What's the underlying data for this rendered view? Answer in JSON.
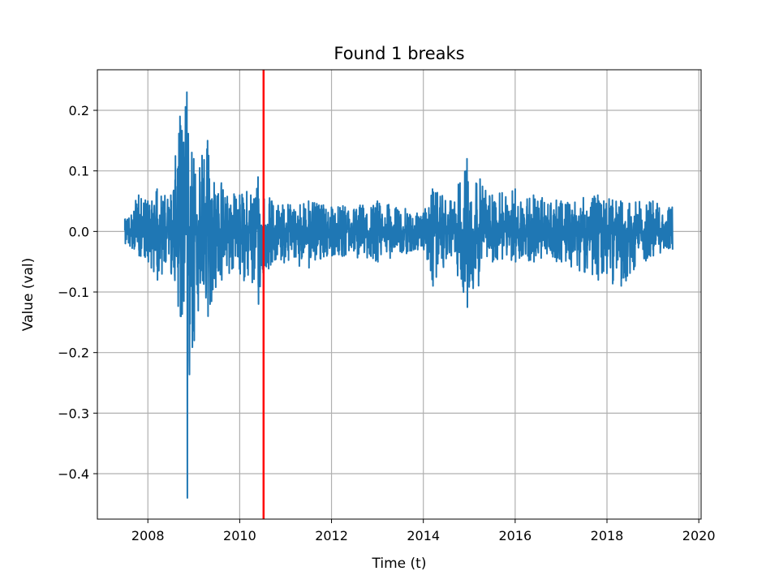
{
  "chart_data": {
    "type": "line",
    "title": "Found 1 breaks",
    "xlabel": "Time (t)",
    "ylabel": "Value (val)",
    "xlim": [
      2006.9,
      2020.05
    ],
    "ylim": [
      -0.475,
      0.267
    ],
    "xticks": [
      {
        "value": 2008,
        "label": "2008"
      },
      {
        "value": 2010,
        "label": "2010"
      },
      {
        "value": 2012,
        "label": "2012"
      },
      {
        "value": 2014,
        "label": "2014"
      },
      {
        "value": 2016,
        "label": "2016"
      },
      {
        "value": 2018,
        "label": "2018"
      },
      {
        "value": 2020,
        "label": "2020"
      }
    ],
    "yticks": [
      {
        "value": 0.2,
        "label": "0.2"
      },
      {
        "value": 0.1,
        "label": "0.1"
      },
      {
        "value": 0.0,
        "label": "0.0"
      },
      {
        "value": -0.1,
        "label": "−0.1"
      },
      {
        "value": -0.2,
        "label": "−0.2"
      },
      {
        "value": -0.3,
        "label": "−0.3"
      },
      {
        "value": -0.4,
        "label": "−0.4"
      }
    ],
    "grid": true,
    "series": [
      {
        "color": "#1f77b4",
        "x_start": 2007.5,
        "x_end": 2019.42,
        "envelope": [
          {
            "x": 2007.5,
            "hi": 0.02,
            "lo": -0.02
          },
          {
            "x": 2007.8,
            "hi": 0.06,
            "lo": -0.04
          },
          {
            "x": 2008.0,
            "hi": 0.05,
            "lo": -0.05
          },
          {
            "x": 2008.2,
            "hi": 0.07,
            "lo": -0.08
          },
          {
            "x": 2008.5,
            "hi": 0.06,
            "lo": -0.07
          },
          {
            "x": 2008.7,
            "hi": 0.19,
            "lo": -0.14
          },
          {
            "x": 2008.85,
            "hi": 0.23,
            "lo": -0.44
          },
          {
            "x": 2009.0,
            "hi": 0.12,
            "lo": -0.18
          },
          {
            "x": 2009.3,
            "hi": 0.15,
            "lo": -0.14
          },
          {
            "x": 2009.6,
            "hi": 0.08,
            "lo": -0.08
          },
          {
            "x": 2010.0,
            "hi": 0.06,
            "lo": -0.07
          },
          {
            "x": 2010.4,
            "hi": 0.09,
            "lo": -0.12
          },
          {
            "x": 2010.7,
            "hi": 0.05,
            "lo": -0.05
          },
          {
            "x": 2011.5,
            "hi": 0.05,
            "lo": -0.06
          },
          {
            "x": 2012.0,
            "hi": 0.04,
            "lo": -0.04
          },
          {
            "x": 2013.0,
            "hi": 0.05,
            "lo": -0.05
          },
          {
            "x": 2014.0,
            "hi": 0.03,
            "lo": -0.03
          },
          {
            "x": 2014.2,
            "hi": 0.07,
            "lo": -0.09
          },
          {
            "x": 2014.6,
            "hi": 0.05,
            "lo": -0.04
          },
          {
            "x": 2014.95,
            "hi": 0.12,
            "lo": -0.125
          },
          {
            "x": 2015.5,
            "hi": 0.06,
            "lo": -0.05
          },
          {
            "x": 2016.0,
            "hi": 0.07,
            "lo": -0.05
          },
          {
            "x": 2016.4,
            "hi": 0.06,
            "lo": -0.05
          },
          {
            "x": 2017.0,
            "hi": 0.05,
            "lo": -0.05
          },
          {
            "x": 2017.8,
            "hi": 0.06,
            "lo": -0.08
          },
          {
            "x": 2018.3,
            "hi": 0.05,
            "lo": -0.09
          },
          {
            "x": 2019.0,
            "hi": 0.05,
            "lo": -0.04
          },
          {
            "x": 2019.42,
            "hi": 0.04,
            "lo": -0.03
          }
        ]
      }
    ],
    "breaks": [
      {
        "x": 2010.52,
        "color": "#ff0000"
      }
    ]
  }
}
